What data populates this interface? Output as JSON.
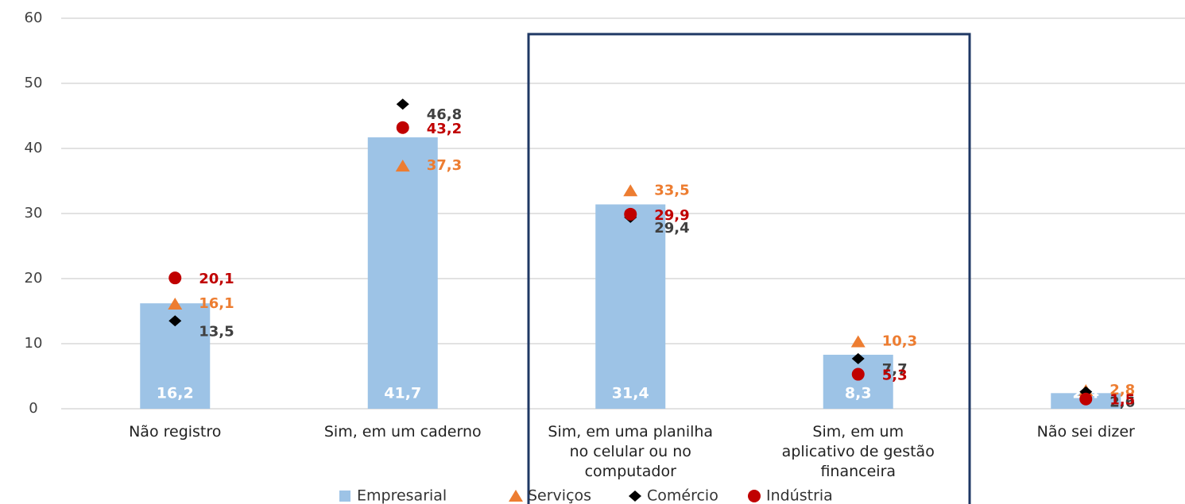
{
  "chart_data": {
    "type": "bar",
    "categories": [
      "Não registro",
      "Sim, em um caderno",
      "Sim, em uma planilha no celular ou no computador",
      "Sim, em um aplicativo de gestão financeira",
      "Não sei dizer"
    ],
    "ylim": [
      0,
      60
    ],
    "yticks": [
      0,
      10,
      20,
      30,
      40,
      50,
      60
    ],
    "grid": true,
    "series": [
      {
        "name": "Empresarial",
        "type": "bar",
        "marker": "square",
        "color": "#9DC3E6",
        "label_color": "#FFFFFF",
        "values": [
          16.2,
          41.7,
          31.4,
          8.3,
          2.4
        ],
        "value_labels": [
          "16,2",
          "41,7",
          "31,4",
          "8,3",
          "2,4"
        ]
      },
      {
        "name": "Serviços",
        "type": "scatter",
        "marker": "triangle",
        "color": "#ED7D31",
        "label_color": "#ED7D31",
        "values": [
          16.1,
          37.3,
          33.5,
          10.3,
          2.8
        ],
        "value_labels": [
          "16,1",
          "37,3",
          "33,5",
          "10,3",
          "2,8"
        ]
      },
      {
        "name": "Comércio",
        "type": "scatter",
        "marker": "diamond",
        "color": "#000000",
        "label_color": "#404040",
        "values": [
          13.5,
          46.8,
          29.4,
          7.7,
          2.6
        ],
        "value_labels": [
          "13,5",
          "46,8",
          "29,4",
          "7,7",
          "2,6"
        ]
      },
      {
        "name": "Indústria",
        "type": "scatter",
        "marker": "circle",
        "color": "#C00000",
        "label_color": "#C00000",
        "values": [
          20.1,
          43.2,
          29.9,
          5.3,
          1.5
        ],
        "value_labels": [
          "20,1",
          "43,2",
          "29,9",
          "5,3",
          "1,5"
        ]
      }
    ]
  }
}
